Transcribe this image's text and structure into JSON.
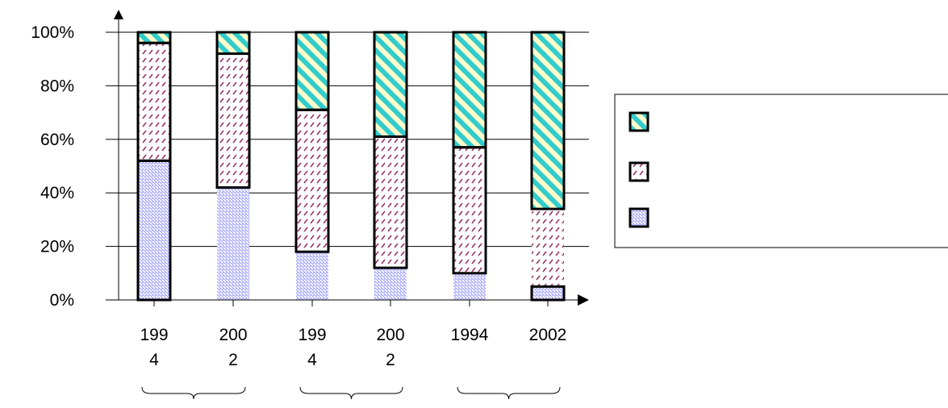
{
  "chart_data": {
    "type": "bar",
    "stacked": true,
    "percent": true,
    "categories": [
      {
        "lines": [
          "199",
          "4"
        ]
      },
      {
        "lines": [
          "200",
          "2"
        ]
      },
      {
        "lines": [
          "199",
          "4"
        ]
      },
      {
        "lines": [
          "200",
          "2"
        ]
      },
      {
        "lines": [
          "1994"
        ]
      },
      {
        "lines": [
          "2002"
        ]
      }
    ],
    "groups": [
      {
        "label": "",
        "categories": [
          0,
          1
        ]
      },
      {
        "label": "",
        "categories": [
          2,
          3
        ]
      },
      {
        "label": "",
        "categories": [
          4,
          5
        ]
      }
    ],
    "series": [
      {
        "color": "#9999ff",
        "pattern": "diag-thin",
        "values": [
          52,
          42,
          18,
          12,
          10,
          5
        ]
      },
      {
        "color": "#993366",
        "pattern": "dash",
        "values": [
          44,
          50,
          53,
          49,
          47,
          29
        ]
      },
      {
        "color": "#33cccc",
        "pattern": "diag-thick",
        "values": [
          4,
          8,
          29,
          39,
          43,
          66
        ]
      }
    ],
    "outlined": [
      [
        true,
        false,
        false,
        false,
        false,
        true
      ],
      [
        true,
        true,
        true,
        true,
        true,
        false
      ],
      [
        true,
        true,
        true,
        true,
        true,
        true
      ]
    ],
    "ylim": [
      0,
      100
    ],
    "yticks": [
      "0%",
      "20%",
      "40%",
      "60%",
      "80%",
      "100%"
    ],
    "grid": true,
    "legend_position": "right",
    "legend": [
      {
        "series": 2,
        "label": ""
      },
      {
        "series": 1,
        "label": ""
      },
      {
        "series": 0,
        "label": ""
      }
    ]
  }
}
